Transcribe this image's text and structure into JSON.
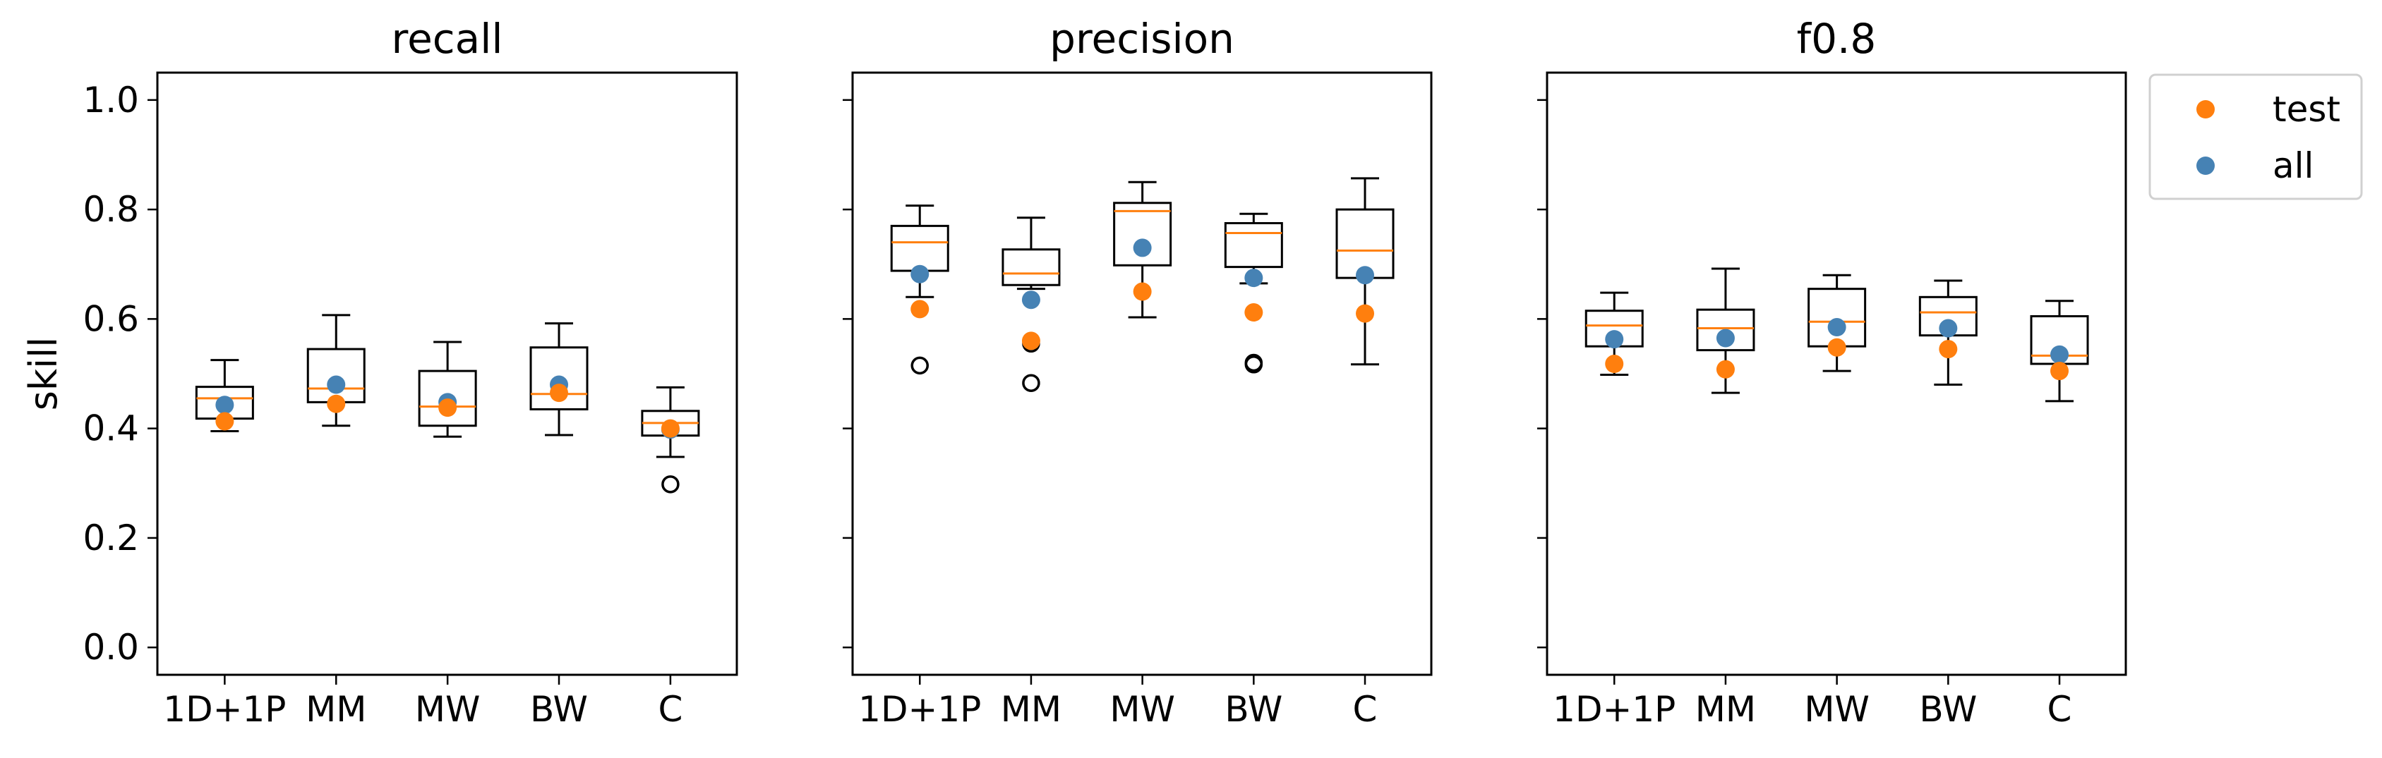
{
  "chart_data": {
    "type": "box",
    "ylabel": "skill",
    "ylim": [
      -0.05,
      1.05
    ],
    "yticks": [
      "0.0",
      "0.2",
      "0.4",
      "0.6",
      "0.8",
      "1.0"
    ],
    "categories": [
      "1D+1P",
      "MM",
      "MW",
      "BW",
      "C"
    ],
    "colors": {
      "test": "#ff7f0e",
      "all": "#4682b4",
      "median": "#ff7f0e",
      "box": "#000000"
    },
    "legend": {
      "position": "outside-right-top",
      "entries": [
        "test",
        "all"
      ]
    },
    "grid": false,
    "panels": [
      {
        "title": "recall",
        "boxes": [
          {
            "category": "1D+1P",
            "whislo": 0.395,
            "q1": 0.418,
            "median": 0.455,
            "q3": 0.476,
            "whishi": 0.525,
            "fliers": []
          },
          {
            "category": "MM",
            "whislo": 0.405,
            "q1": 0.448,
            "median": 0.473,
            "q3": 0.545,
            "whishi": 0.607,
            "fliers": []
          },
          {
            "category": "MW",
            "whislo": 0.385,
            "q1": 0.405,
            "median": 0.44,
            "q3": 0.505,
            "whishi": 0.558,
            "fliers": []
          },
          {
            "category": "BW",
            "whislo": 0.388,
            "q1": 0.435,
            "median": 0.463,
            "q3": 0.548,
            "whishi": 0.592,
            "fliers": []
          },
          {
            "category": "C",
            "whislo": 0.348,
            "q1": 0.387,
            "median": 0.41,
            "q3": 0.432,
            "whishi": 0.475,
            "fliers": [
              0.298
            ]
          }
        ],
        "test": [
          0.413,
          0.445,
          0.438,
          0.465,
          0.4
        ],
        "all": [
          0.443,
          0.48,
          0.448,
          0.48,
          0.398
        ]
      },
      {
        "title": "precision",
        "boxes": [
          {
            "category": "1D+1P",
            "whislo": 0.64,
            "q1": 0.688,
            "median": 0.74,
            "q3": 0.77,
            "whishi": 0.807,
            "fliers": [
              0.515
            ]
          },
          {
            "category": "MM",
            "whislo": 0.655,
            "q1": 0.662,
            "median": 0.683,
            "q3": 0.727,
            "whishi": 0.785,
            "fliers": [
              0.555,
              0.483
            ]
          },
          {
            "category": "MW",
            "whislo": 0.603,
            "q1": 0.698,
            "median": 0.797,
            "q3": 0.812,
            "whishi": 0.85,
            "fliers": []
          },
          {
            "category": "BW",
            "whislo": 0.665,
            "q1": 0.695,
            "median": 0.757,
            "q3": 0.775,
            "whishi": 0.792,
            "fliers": [
              0.52,
              0.517
            ]
          },
          {
            "category": "C",
            "whislo": 0.517,
            "q1": 0.675,
            "median": 0.725,
            "q3": 0.8,
            "whishi": 0.857,
            "fliers": []
          }
        ],
        "test": [
          0.618,
          0.56,
          0.65,
          0.612,
          0.61
        ],
        "all": [
          0.682,
          0.635,
          0.73,
          0.675,
          0.68
        ]
      },
      {
        "title": "f0.8",
        "boxes": [
          {
            "category": "1D+1P",
            "whislo": 0.498,
            "q1": 0.55,
            "median": 0.588,
            "q3": 0.615,
            "whishi": 0.648,
            "fliers": []
          },
          {
            "category": "MM",
            "whislo": 0.465,
            "q1": 0.543,
            "median": 0.583,
            "q3": 0.617,
            "whishi": 0.692,
            "fliers": []
          },
          {
            "category": "MW",
            "whislo": 0.505,
            "q1": 0.55,
            "median": 0.595,
            "q3": 0.655,
            "whishi": 0.68,
            "fliers": []
          },
          {
            "category": "BW",
            "whislo": 0.48,
            "q1": 0.57,
            "median": 0.612,
            "q3": 0.64,
            "whishi": 0.67,
            "fliers": []
          },
          {
            "category": "C",
            "whislo": 0.45,
            "q1": 0.518,
            "median": 0.533,
            "q3": 0.605,
            "whishi": 0.633,
            "fliers": []
          }
        ],
        "test": [
          0.518,
          0.508,
          0.548,
          0.545,
          0.505
        ],
        "all": [
          0.563,
          0.565,
          0.585,
          0.583,
          0.535
        ]
      }
    ]
  }
}
